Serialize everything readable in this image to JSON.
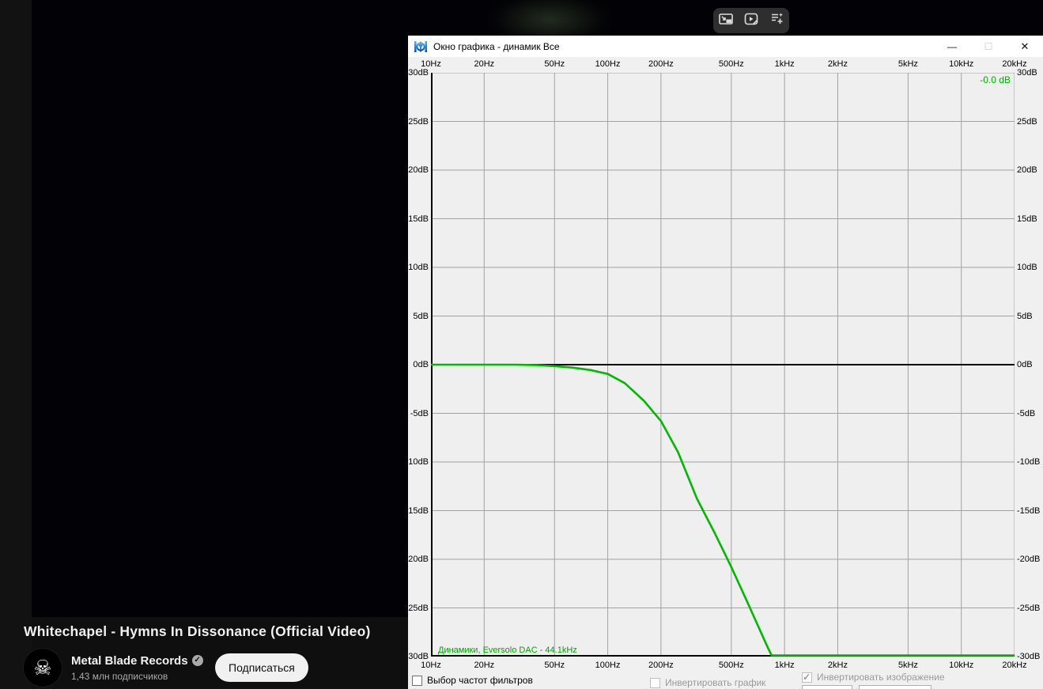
{
  "overlay_toolbar": {
    "buttons": [
      {
        "icon": "miniplayer-icon"
      },
      {
        "icon": "video-edit-icon"
      },
      {
        "icon": "note-add-icon"
      }
    ]
  },
  "youtube": {
    "video_title": "Whitechapel - Hymns In Dissonance (Official Video)",
    "channel": {
      "name": "Metal Blade Records",
      "verified": true,
      "verified_glyph": "✓",
      "subscribers": "1,43 млн подписчиков",
      "avatar_glyph": "☠"
    },
    "subscribe_label": "Подписаться"
  },
  "window": {
    "title": "Окно графика - динамик Все",
    "minimize_glyph": "—",
    "maximize_glyph": "☐",
    "close_glyph": "✕"
  },
  "graph": {
    "readout": "-0.0 dB",
    "legend": "Динамики, Eversolo DAC - 44.1kHz",
    "controls": {
      "filter_freq_checkbox": {
        "label": "Выбор частот фильтров",
        "checked": false,
        "enabled": true
      },
      "invert_graph_checkbox": {
        "label": "Инвертировать график",
        "checked": false,
        "enabled": false
      },
      "invert_image_checkbox": {
        "label": "Инвертировать изображение",
        "checked": true,
        "enabled": false
      }
    }
  },
  "chart_data": {
    "type": "line",
    "x_scale": "log",
    "xlim": [
      10,
      20000
    ],
    "ylim": [
      -30,
      30
    ],
    "grid": true,
    "colors": {
      "line": "#00b900",
      "grid": "#a2a2a2",
      "axis": "#000000",
      "plot_bg": "#efefef"
    },
    "freq_ticks": [
      {
        "f": 10,
        "label": "10Hz"
      },
      {
        "f": 20,
        "label": "20Hz"
      },
      {
        "f": 50,
        "label": "50Hz"
      },
      {
        "f": 100,
        "label": "100Hz"
      },
      {
        "f": 200,
        "label": "200Hz"
      },
      {
        "f": 500,
        "label": "500Hz"
      },
      {
        "f": 1000,
        "label": "1kHz"
      },
      {
        "f": 2000,
        "label": "2kHz"
      },
      {
        "f": 5000,
        "label": "5kHz"
      },
      {
        "f": 10000,
        "label": "10kHz"
      },
      {
        "f": 20000,
        "label": "20kHz"
      }
    ],
    "db_ticks": [
      {
        "db": 30,
        "label": "30dB"
      },
      {
        "db": 25,
        "label": "25dB"
      },
      {
        "db": 20,
        "label": "20dB"
      },
      {
        "db": 15,
        "label": "15dB"
      },
      {
        "db": 10,
        "label": "10dB"
      },
      {
        "db": 5,
        "label": "5dB"
      },
      {
        "db": 0,
        "label": "0dB"
      },
      {
        "db": -5,
        "label": "-5dB"
      },
      {
        "db": -10,
        "label": "-10dB"
      },
      {
        "db": -15,
        "label": "-15dB"
      },
      {
        "db": -20,
        "label": "-20dB"
      },
      {
        "db": -25,
        "label": "-25dB"
      },
      {
        "db": -30,
        "label": "-30dB"
      }
    ],
    "series": [
      {
        "name": "Динамики, Eversolo DAC - 44.1kHz",
        "color": "#00b900",
        "points": [
          [
            10,
            0
          ],
          [
            20,
            0
          ],
          [
            30,
            0
          ],
          [
            40,
            -0.05
          ],
          [
            50,
            -0.15
          ],
          [
            63,
            -0.3
          ],
          [
            80,
            -0.55
          ],
          [
            100,
            -0.95
          ],
          [
            125,
            -1.9
          ],
          [
            160,
            -3.7
          ],
          [
            200,
            -5.8
          ],
          [
            250,
            -9.0
          ],
          [
            320,
            -13.8
          ],
          [
            400,
            -17.2
          ],
          [
            500,
            -20.8
          ],
          [
            630,
            -24.8
          ],
          [
            800,
            -29.0
          ],
          [
            845,
            -30
          ],
          [
            1000,
            -30
          ],
          [
            2000,
            -30
          ],
          [
            5000,
            -30
          ],
          [
            10000,
            -30
          ],
          [
            20000,
            -30
          ]
        ]
      }
    ]
  }
}
